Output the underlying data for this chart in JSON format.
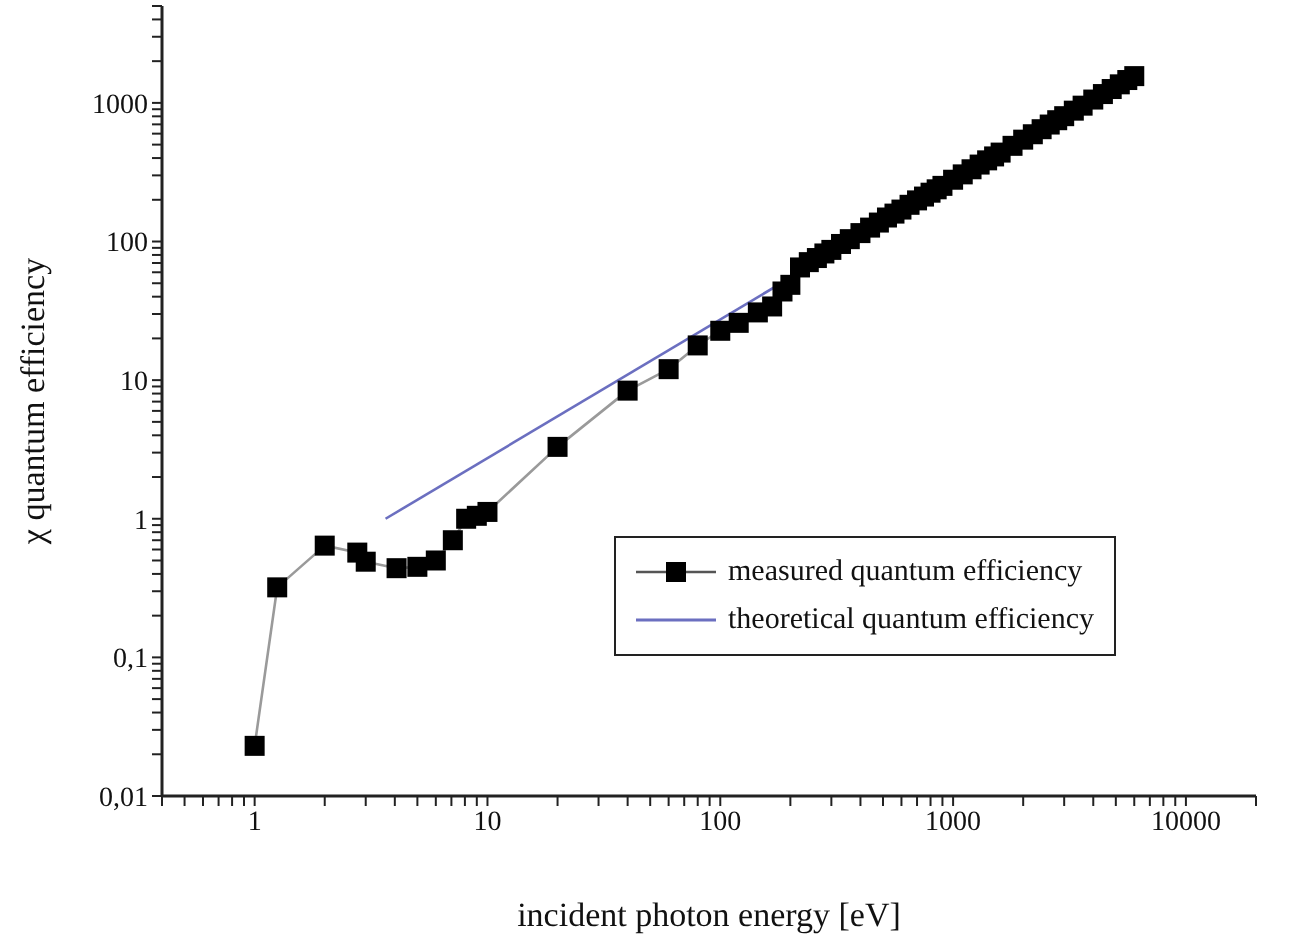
{
  "chart_data": {
    "type": "line",
    "xlabel": "incident photon energy [eV]",
    "ylabel": "χ quantum efficiency",
    "log": "xy",
    "legend": "right",
    "xlim": [
      0.4,
      20000
    ],
    "ylim": [
      0.01,
      5000
    ],
    "xticks": [
      {
        "value": 0.4,
        "label": null
      },
      {
        "value": 0.5,
        "label": null
      },
      {
        "value": 0.6,
        "label": null
      },
      {
        "value": 0.7,
        "label": null
      },
      {
        "value": 0.8,
        "label": null
      },
      {
        "value": 0.9,
        "label": null
      },
      1,
      {
        "value": 2,
        "label": null
      },
      {
        "value": 3,
        "label": null
      },
      {
        "value": 4,
        "label": null
      },
      {
        "value": 5,
        "label": null
      },
      {
        "value": 6,
        "label": null
      },
      {
        "value": 7,
        "label": null
      },
      {
        "value": 8,
        "label": null
      },
      {
        "value": 9,
        "label": null
      },
      10,
      {
        "value": 20,
        "label": null
      },
      {
        "value": 30,
        "label": null
      },
      {
        "value": 40,
        "label": null
      },
      {
        "value": 50,
        "label": null
      },
      {
        "value": 60,
        "label": null
      },
      {
        "value": 70,
        "label": null
      },
      {
        "value": 80,
        "label": null
      },
      {
        "value": 90,
        "label": null
      },
      100,
      {
        "value": 200,
        "label": null
      },
      {
        "value": 300,
        "label": null
      },
      {
        "value": 400,
        "label": null
      },
      {
        "value": 500,
        "label": null
      },
      {
        "value": 600,
        "label": null
      },
      {
        "value": 700,
        "label": null
      },
      {
        "value": 800,
        "label": null
      },
      {
        "value": 900,
        "label": null
      },
      1000,
      {
        "value": 2000,
        "label": null
      },
      {
        "value": 3000,
        "label": null
      },
      {
        "value": 4000,
        "label": null
      },
      {
        "value": 5000,
        "label": null
      },
      {
        "value": 6000,
        "label": null
      },
      {
        "value": 7000,
        "label": null
      },
      {
        "value": 8000,
        "label": null
      },
      {
        "value": 9000,
        "label": null
      },
      10000,
      {
        "value": 20000,
        "label": null
      }
    ],
    "yticks": [
      {
        "value": 0.01,
        "label": "0,01"
      },
      {
        "value": 0.02,
        "label": null
      },
      {
        "value": 0.03,
        "label": null
      },
      {
        "value": 0.04,
        "label": null
      },
      {
        "value": 0.05,
        "label": null
      },
      {
        "value": 0.06,
        "label": null
      },
      {
        "value": 0.07,
        "label": null
      },
      {
        "value": 0.08,
        "label": null
      },
      {
        "value": 0.09,
        "label": null
      },
      {
        "value": 0.1,
        "label": "0,1"
      },
      {
        "value": 0.2,
        "label": null
      },
      {
        "value": 0.3,
        "label": null
      },
      {
        "value": 0.4,
        "label": null
      },
      {
        "value": 0.5,
        "label": null
      },
      {
        "value": 0.6,
        "label": null
      },
      {
        "value": 0.7,
        "label": null
      },
      {
        "value": 0.8,
        "label": null
      },
      {
        "value": 0.9,
        "label": null
      },
      1,
      {
        "value": 2,
        "label": null
      },
      {
        "value": 3,
        "label": null
      },
      {
        "value": 4,
        "label": null
      },
      {
        "value": 5,
        "label": null
      },
      {
        "value": 6,
        "label": null
      },
      {
        "value": 7,
        "label": null
      },
      {
        "value": 8,
        "label": null
      },
      {
        "value": 9,
        "label": null
      },
      10,
      {
        "value": 20,
        "label": null
      },
      {
        "value": 30,
        "label": null
      },
      {
        "value": 40,
        "label": null
      },
      {
        "value": 50,
        "label": null
      },
      {
        "value": 60,
        "label": null
      },
      {
        "value": 70,
        "label": null
      },
      {
        "value": 80,
        "label": null
      },
      {
        "value": 90,
        "label": null
      },
      100,
      {
        "value": 200,
        "label": null
      },
      {
        "value": 300,
        "label": null
      },
      {
        "value": 400,
        "label": null
      },
      {
        "value": 500,
        "label": null
      },
      {
        "value": 600,
        "label": null
      },
      {
        "value": 700,
        "label": null
      },
      {
        "value": 800,
        "label": null
      },
      {
        "value": 900,
        "label": null
      },
      1000,
      {
        "value": 2000,
        "label": null
      },
      {
        "value": 3000,
        "label": null
      },
      {
        "value": 4000,
        "label": null
      },
      {
        "value": 5000,
        "label": null
      }
    ],
    "series": [
      {
        "name": "measured quantum efficiency",
        "color": "#000000",
        "marker": "square",
        "line_style": "solid",
        "x": [
          1,
          1.25,
          2,
          2.76,
          3,
          4.07,
          5,
          6,
          7.1,
          8.1,
          9,
          10,
          20,
          40,
          60,
          80,
          100,
          120,
          145,
          167,
          185,
          200,
          220,
          240,
          260,
          280,
          300,
          330,
          360,
          400,
          440,
          480,
          520,
          560,
          600,
          650,
          700,
          750,
          800,
          850,
          900,
          1000,
          1100,
          1200,
          1300,
          1400,
          1500,
          1600,
          1800,
          2000,
          2200,
          2400,
          2600,
          2800,
          3000,
          3300,
          3600,
          4000,
          4400,
          4800,
          5200,
          5600,
          6000
        ],
        "values": [
          0.023,
          0.32,
          0.64,
          0.57,
          0.49,
          0.44,
          0.45,
          0.5,
          0.7,
          1.0,
          1.05,
          1.12,
          3.3,
          8.4,
          12,
          17.8,
          22.7,
          25.9,
          30.8,
          34,
          43.6,
          48.7,
          65,
          71,
          76,
          82,
          87,
          96,
          104,
          115,
          126,
          137,
          149,
          159,
          170,
          184,
          198,
          211,
          225,
          238,
          252,
          279,
          305,
          332,
          359,
          385,
          411,
          438,
          490,
          543,
          594,
          646,
          698,
          750,
          802,
          879,
          955,
          1057,
          1158,
          1259,
          1361,
          1462,
          1560
        ]
      },
      {
        "name": "theoretical quantum efficiency",
        "color": "#6b6fc0",
        "marker": "none",
        "line_style": "solid",
        "x": [
          3.65,
          3650
        ],
        "values": [
          1,
          1000
        ]
      }
    ]
  }
}
